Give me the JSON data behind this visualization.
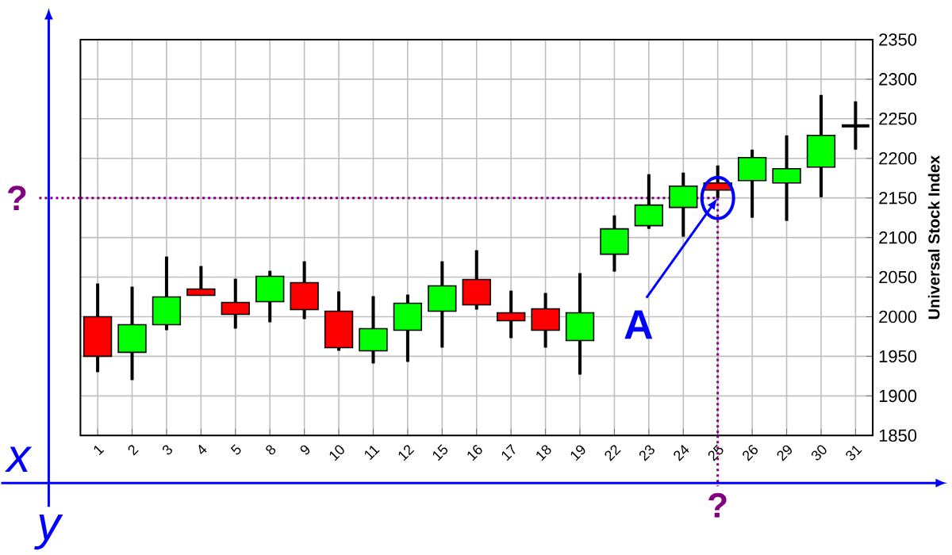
{
  "chart_data": {
    "type": "candlestick",
    "ylabel": "Universal Stock Index",
    "categories": [
      "1",
      "2",
      "3",
      "4",
      "5",
      "8",
      "9",
      "10",
      "11",
      "12",
      "15",
      "16",
      "17",
      "18",
      "19",
      "22",
      "23",
      "24",
      "25",
      "26",
      "29",
      "30",
      "31"
    ],
    "ohlc": [
      [
        2000,
        2042,
        1930,
        1950
      ],
      [
        1955,
        2038,
        1920,
        1990
      ],
      [
        1990,
        2076,
        1983,
        2025
      ],
      [
        2035,
        2064,
        2027,
        2027
      ],
      [
        2018,
        2048,
        1985,
        2003
      ],
      [
        2019,
        2058,
        1993,
        2051
      ],
      [
        2043,
        2070,
        1997,
        2009
      ],
      [
        2007,
        2032,
        1957,
        1961
      ],
      [
        1957,
        2026,
        1941,
        1985
      ],
      [
        1983,
        2028,
        1943,
        2017
      ],
      [
        2007,
        2070,
        1961,
        2039
      ],
      [
        2047,
        2084,
        2009,
        2015
      ],
      [
        2005,
        2033,
        1973,
        1995
      ],
      [
        2010,
        2030,
        1961,
        1983
      ],
      [
        1970,
        2055,
        1927,
        2005
      ],
      [
        2079,
        2128,
        2057,
        2111
      ],
      [
        2115,
        2180,
        2111,
        2141
      ],
      [
        2138,
        2182,
        2101,
        2165
      ],
      [
        2169,
        2191,
        2150,
        2160
      ],
      [
        2172,
        2211,
        2125,
        2201
      ],
      [
        2169,
        2229,
        2121,
        2187
      ],
      [
        2189,
        2280,
        2151,
        2229
      ],
      [
        2241,
        2272,
        2211,
        2241
      ]
    ],
    "colors": [
      "#ff0000",
      "#00ff00",
      "#00ff00",
      "#ff0000",
      "#ff0000",
      "#00ff00",
      "#ff0000",
      "#ff0000",
      "#00ff00",
      "#00ff00",
      "#00ff00",
      "#ff0000",
      "#ff0000",
      "#ff0000",
      "#00ff00",
      "#00ff00",
      "#00ff00",
      "#00ff00",
      "#ff0000",
      "#00ff00",
      "#00ff00",
      "#00ff00",
      "#000000"
    ],
    "ylim": [
      1850,
      2350
    ],
    "yticks": [
      1850,
      1900,
      1950,
      2000,
      2050,
      2100,
      2150,
      2200,
      2250,
      2300,
      2350
    ],
    "grid": true,
    "ref_lines": [
      {
        "axis": "y",
        "value": 2150,
        "label": "?",
        "color": "#800080",
        "line_style": "dotted"
      },
      {
        "axis": "x",
        "value": "25",
        "label": "?",
        "color": "#800080",
        "line_style": "dotted"
      }
    ],
    "annotations": [
      "x",
      "y",
      {
        "text": "A",
        "x": "25",
        "y": 2150
      }
    ]
  }
}
